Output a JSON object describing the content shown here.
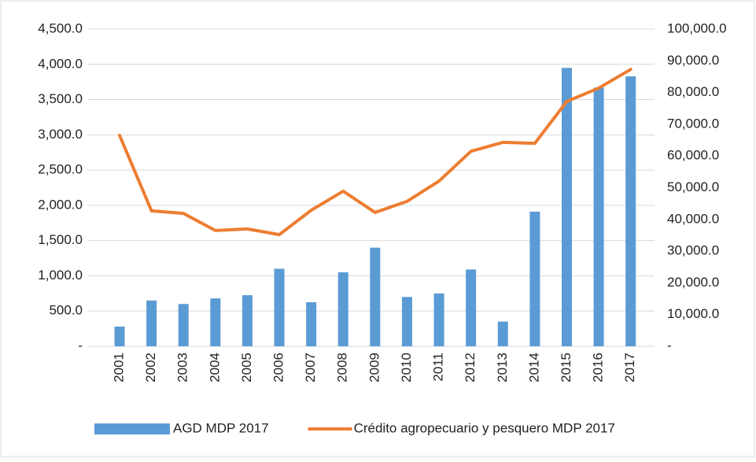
{
  "chart_data": {
    "type": "bar+line",
    "categories": [
      "2001",
      "2002",
      "2003",
      "2004",
      "2005",
      "2006",
      "2007",
      "2008",
      "2009",
      "2010",
      "2011",
      "2012",
      "2013",
      "2014",
      "2015",
      "2016",
      "2017"
    ],
    "series": [
      {
        "name": "AGD MDP 2017",
        "type": "bar",
        "color": "#5b9bd5",
        "values": [
          280,
          650,
          600,
          680,
          725,
          1100,
          625,
          1050,
          1400,
          700,
          750,
          1090,
          350,
          1910,
          3950,
          3670,
          3830
        ]
      },
      {
        "name": "Crédito agropecuario y pesquero MDP 2017",
        "type": "line",
        "axis": "y2",
        "color": "#ed7d31",
        "values": [
          66500,
          42700,
          41900,
          36500,
          37000,
          35200,
          42900,
          48900,
          42200,
          45700,
          52100,
          61500,
          64300,
          64000,
          77200,
          81400,
          87300
        ]
      }
    ],
    "ylim": [
      0,
      4500
    ],
    "yticks": [
      {
        "value": 0,
        "label": "-"
      },
      {
        "value": 500,
        "label": "500.0"
      },
      {
        "value": 1000,
        "label": "1,000.0"
      },
      {
        "value": 1500,
        "label": "1,500.0"
      },
      {
        "value": 2000,
        "label": "2,000.0"
      },
      {
        "value": 2500,
        "label": "2,500.0"
      },
      {
        "value": 3000,
        "label": "3,000.0"
      },
      {
        "value": 3500,
        "label": "3,500.0"
      },
      {
        "value": 4000,
        "label": "4,000.0"
      },
      {
        "value": 4500,
        "label": "4,500.0"
      }
    ],
    "y2lim": [
      0,
      100000
    ],
    "y2ticks": [
      {
        "value": 0,
        "label": "-"
      },
      {
        "value": 10000,
        "label": "10,000.0"
      },
      {
        "value": 20000,
        "label": "20,000.0"
      },
      {
        "value": 30000,
        "label": "30,000.0"
      },
      {
        "value": 40000,
        "label": "40,000.0"
      },
      {
        "value": 50000,
        "label": "50,000.0"
      },
      {
        "value": 60000,
        "label": "60,000.0"
      },
      {
        "value": 70000,
        "label": "70,000.0"
      },
      {
        "value": 80000,
        "label": "80,000.0"
      },
      {
        "value": 90000,
        "label": "90,000.0"
      },
      {
        "value": 100000,
        "label": "100,000.0"
      }
    ],
    "grid": true,
    "legend": "bottom"
  }
}
